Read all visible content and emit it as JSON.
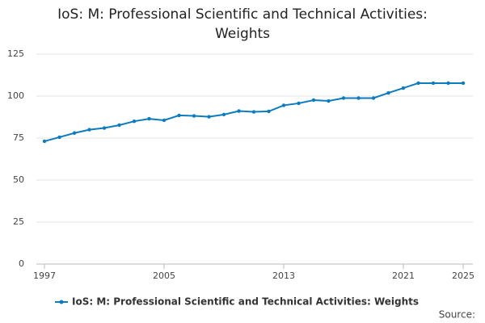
{
  "chart_data": {
    "type": "line",
    "title": "IoS: M: Professional Scientific and Technical Activities: Weights",
    "x": [
      1997,
      1998,
      1999,
      2000,
      2001,
      2002,
      2003,
      2004,
      2005,
      2006,
      2007,
      2008,
      2009,
      2010,
      2011,
      2012,
      2013,
      2014,
      2015,
      2016,
      2017,
      2018,
      2019,
      2020,
      2021,
      2022,
      2023,
      2024,
      2025
    ],
    "series": [
      {
        "name": "IoS: M: Professional Scientific and Technical Activities: Weights",
        "color": "#0c7bbf",
        "values": [
          73.1,
          75.5,
          78,
          80,
          81,
          82.7,
          85,
          86.5,
          85.6,
          88.5,
          88.2,
          87.7,
          89,
          91.1,
          90.6,
          90.9,
          94.5,
          95.7,
          97.6,
          97.1,
          98.8,
          98.8,
          98.8,
          101.9,
          104.8,
          107.7,
          107.7,
          107.7,
          107.7
        ]
      }
    ],
    "xlim": [
      1997,
      2025
    ],
    "xticks": [
      1997,
      2005,
      2013,
      2021,
      2025
    ],
    "ylim": [
      0,
      125
    ],
    "yticks": [
      0,
      25,
      50,
      75,
      100,
      125
    ],
    "grid": true,
    "source_label": "Source:"
  }
}
